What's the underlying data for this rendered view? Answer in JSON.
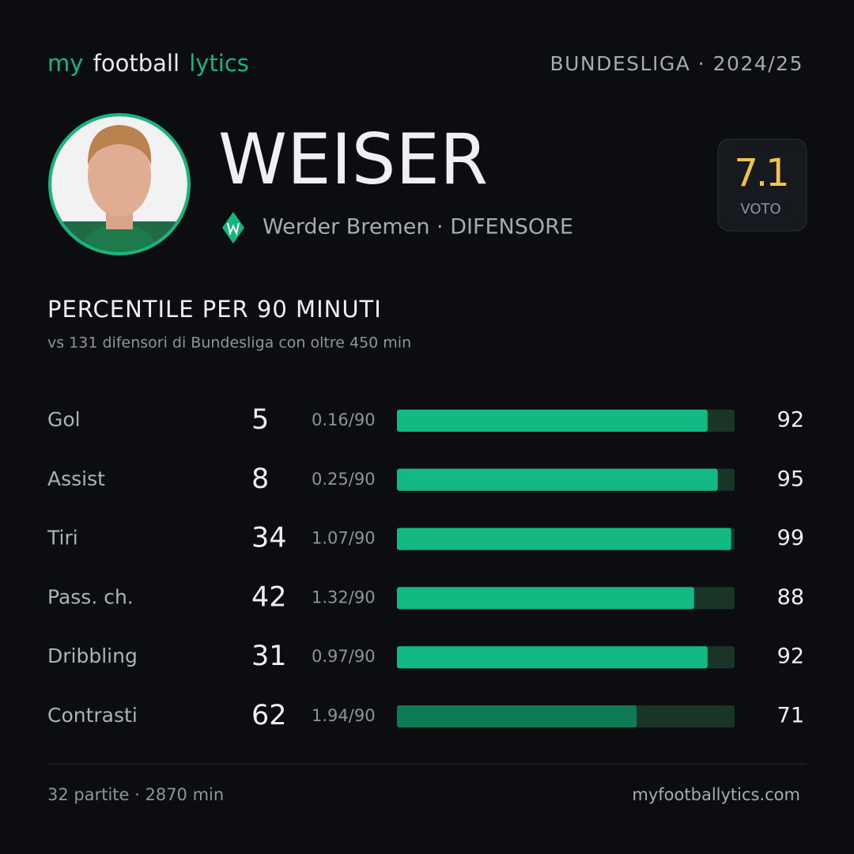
{
  "header": {
    "logo": [
      "my",
      "football",
      "lytics"
    ],
    "competition": "BUNDESLIGA · 2024/25"
  },
  "player": {
    "name": "WEISER",
    "team": "Werder Bremen · DIFENSORE",
    "rating": "7.1",
    "rating_label": "VOTO"
  },
  "section": {
    "title": "PERCENTILE PER 90 MINUTI",
    "subtitle": "vs 131 difensori di Bundesliga con oltre 450 min"
  },
  "rows": [
    {
      "label": "Gol",
      "total": 5,
      "per90": "0.16/90",
      "percentile": 92,
      "color": "#13b882"
    },
    {
      "label": "Assist",
      "total": 8,
      "per90": "0.25/90",
      "percentile": 95,
      "color": "#13b882"
    },
    {
      "label": "Tiri",
      "total": 34,
      "per90": "1.07/90",
      "percentile": 99,
      "color": "#13b882"
    },
    {
      "label": "Pass. ch.",
      "total": 42,
      "per90": "1.32/90",
      "percentile": 88,
      "color": "#13b882"
    },
    {
      "label": "Dribbling",
      "total": 31,
      "per90": "0.97/90",
      "percentile": 92,
      "color": "#13b882"
    },
    {
      "label": "Contrasti",
      "total": 62,
      "per90": "1.94/90",
      "percentile": 71,
      "color": "#0e7a55"
    }
  ],
  "percentile_max": 100,
  "footer": {
    "summary": "32 partite · 2870 min",
    "site": "myfootballytics.com"
  }
}
